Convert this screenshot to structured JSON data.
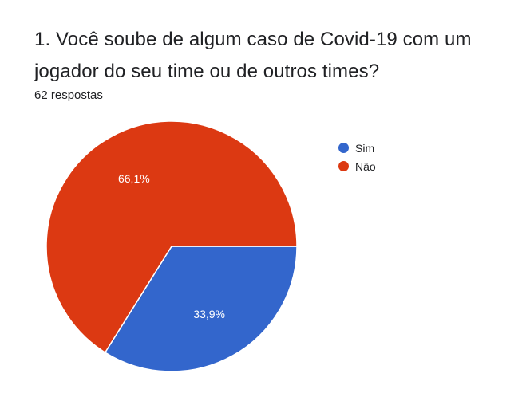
{
  "question": {
    "title": "1. Você soube de algum caso de Covid-19 com um jogador do seu time ou de outros times?",
    "responses": "62 respostas"
  },
  "chart_data": {
    "type": "pie",
    "categories": [
      "Sim",
      "Não"
    ],
    "values": [
      33.9,
      66.1
    ],
    "labels": [
      "33,9%",
      "66,1%"
    ],
    "colors": [
      "#3366cc",
      "#dc3912"
    ],
    "legend_position": "right",
    "start_angle_deg": 90,
    "direction": "clockwise"
  }
}
